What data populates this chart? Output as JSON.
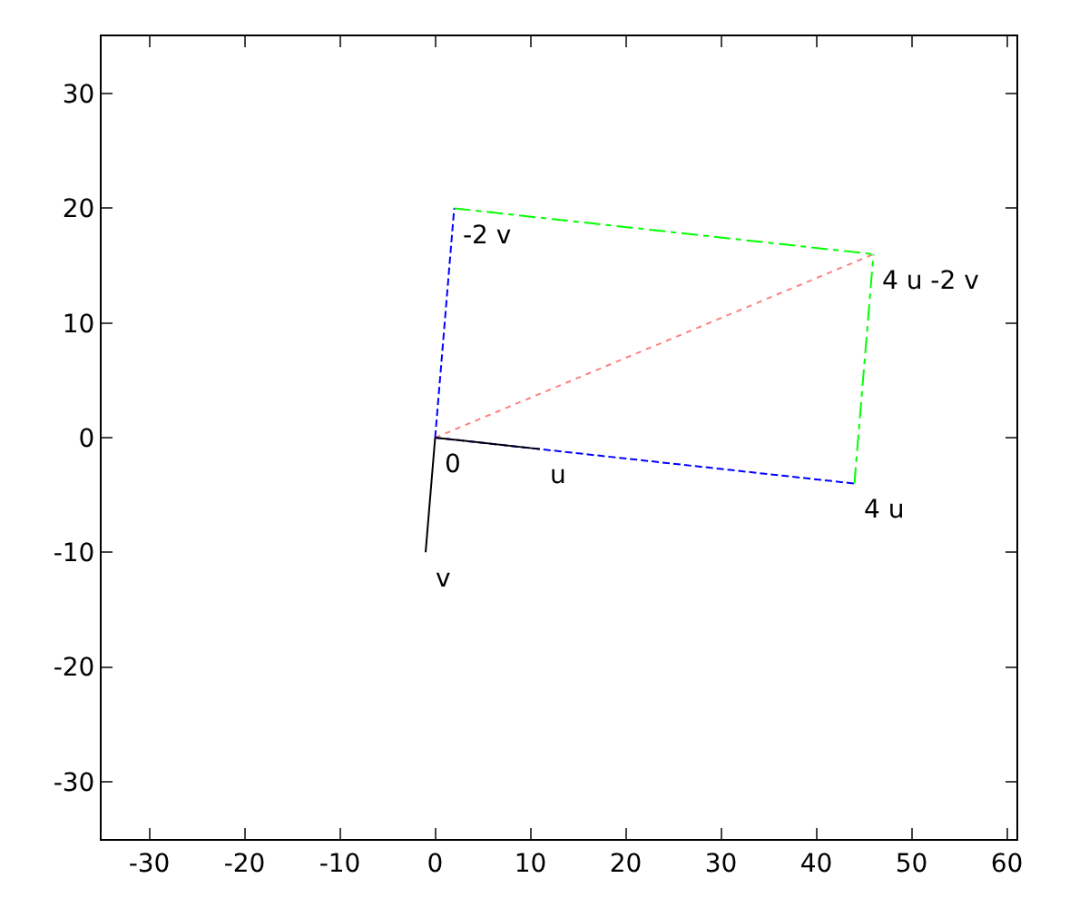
{
  "chart_data": {
    "type": "line",
    "xlim": [
      -35,
      61
    ],
    "ylim": [
      -35,
      35
    ],
    "xticks": [
      -30,
      -20,
      -10,
      0,
      10,
      20,
      30,
      40,
      50,
      60
    ],
    "yticks": [
      -30,
      -20,
      -10,
      0,
      10,
      20,
      30
    ],
    "series": [
      {
        "color": "#000000",
        "x": [
          0,
          11
        ],
        "values": [
          0,
          -1
        ],
        "line_style": "solid"
      },
      {
        "color": "#000000",
        "x": [
          0,
          -1
        ],
        "values": [
          0,
          -10
        ],
        "line_style": "solid"
      },
      {
        "color": "#0000ff",
        "x": [
          0,
          44
        ],
        "values": [
          0,
          -4
        ],
        "line_style": "dashed"
      },
      {
        "color": "#0000ff",
        "x": [
          0,
          2
        ],
        "values": [
          0,
          20
        ],
        "line_style": "dashed"
      },
      {
        "color": "#00ff00",
        "x": [
          2,
          46
        ],
        "values": [
          20,
          16
        ],
        "line_style": "dashdot"
      },
      {
        "color": "#00ff00",
        "x": [
          44,
          46
        ],
        "values": [
          -4,
          16
        ],
        "line_style": "dashdot"
      },
      {
        "color": "#ff8080",
        "x": [
          0,
          46
        ],
        "values": [
          0,
          16
        ],
        "line_style": "dotted"
      }
    ],
    "annotations": [
      {
        "text": "0",
        "x": 0,
        "y": 0
      },
      {
        "text": "u",
        "x": 11,
        "y": -1
      },
      {
        "text": "v",
        "x": -1,
        "y": -10
      },
      {
        "text": "4 u",
        "x": 44,
        "y": -4
      },
      {
        "text": "-2 v",
        "x": 2,
        "y": 20
      },
      {
        "text": "4 u -2 v",
        "x": 46,
        "y": 16
      }
    ]
  }
}
